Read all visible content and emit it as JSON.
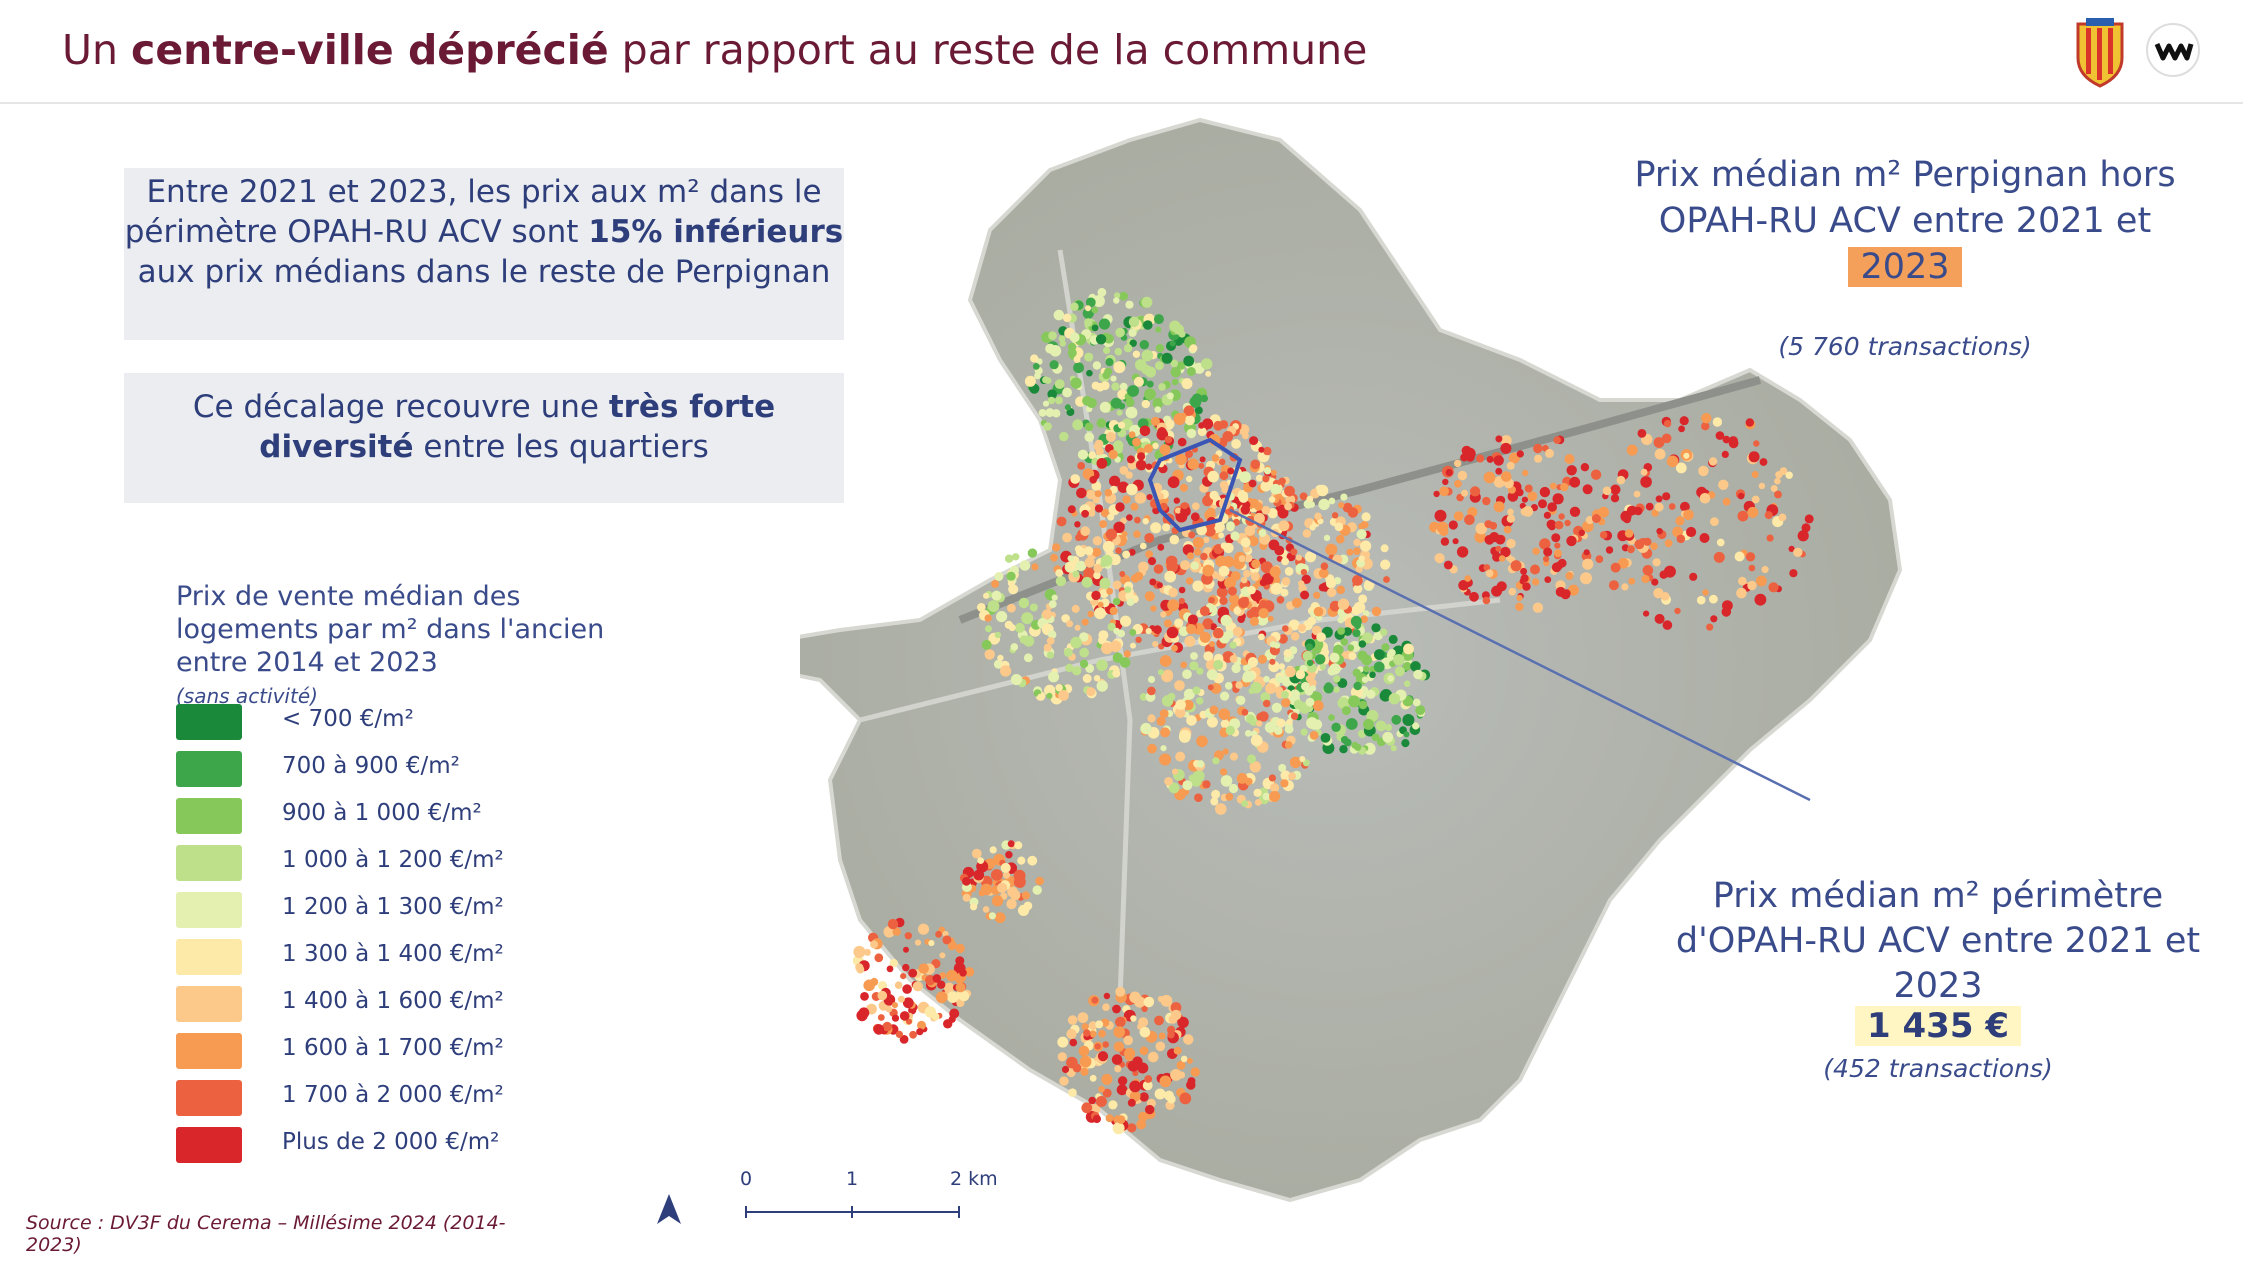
{
  "header": {
    "title_prefix": "Un ",
    "title_bold": "centre-ville déprécié",
    "title_suffix": " par rapport au reste de la commune"
  },
  "box1": {
    "text_before": "Entre 2021 et 2023, les prix aux m² dans le périmètre OPAH-RU ACV sont ",
    "text_bold": "15% inférieurs",
    "text_after": " aux prix médians dans le reste de Perpignan"
  },
  "box2": {
    "text_before": "Ce décalage recouvre une ",
    "text_bold": "très forte diversité",
    "text_after": " entre les quartiers"
  },
  "legend": {
    "title": "Prix de vente médian des logements par m² dans l'ancien entre 2014 et 2023",
    "note": "(sans activité)",
    "items": [
      {
        "label": "< 700 €/m²",
        "color": "#1a8a3a"
      },
      {
        "label": "700 à 900 €/m²",
        "color": "#3da64a"
      },
      {
        "label": "900 à 1 000 €/m²",
        "color": "#86c95a"
      },
      {
        "label": "1 000 à 1 200 €/m²",
        "color": "#bfe08a"
      },
      {
        "label": "1 200 à 1 300 €/m²",
        "color": "#e4f0b0"
      },
      {
        "label": "1 300 à 1 400 €/m²",
        "color": "#fde9a8"
      },
      {
        "label": "1 400 à 1 600 €/m²",
        "color": "#fcc98a"
      },
      {
        "label": "1 600 à 1 700 €/m²",
        "color": "#f79a52"
      },
      {
        "label": "1 700 à 2 000 €/m²",
        "color": "#ec6240"
      },
      {
        "label": "Plus de 2 000 €/m²",
        "color": "#d8262b"
      }
    ]
  },
  "callout_top": {
    "line": "Prix médian m² Perpignan hors OPAH-RU ACV entre 2021 et",
    "highlight": "2023",
    "transactions": "(5 760 transactions)"
  },
  "callout_bottom": {
    "line": "Prix médian m² périmètre d'OPAH-RU ACV entre 2021 et 2023",
    "price": "1 435 €",
    "transactions": "(452 transactions)"
  },
  "scale": {
    "label_0": "0",
    "label_1": "1",
    "label_2": "2 km"
  },
  "source": "Source : DV3F du Cerema – Millésime 2024 (2014-2023)",
  "colors": {
    "title": "#6b1a35",
    "text": "#2e3e7b",
    "box_bg": "#ebedf0",
    "highlight_orange": "#f5a05a",
    "highlight_yellow": "#fff6c4"
  }
}
